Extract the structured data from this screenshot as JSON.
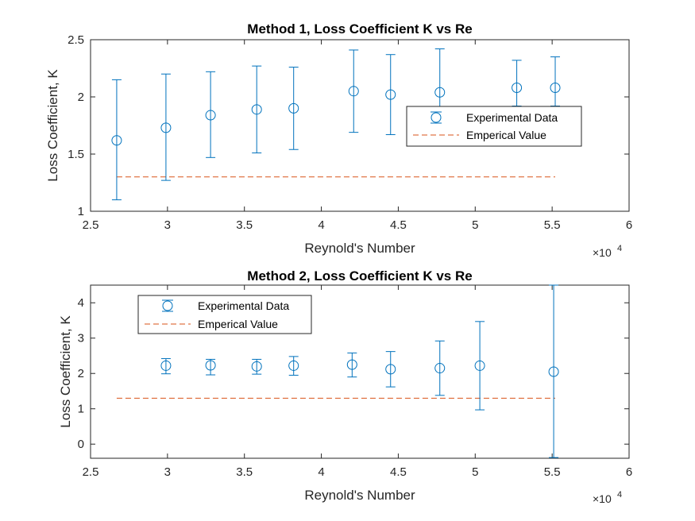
{
  "colors": {
    "experimental": "#0072BD",
    "emperical": "#D95319",
    "axis": "#262626",
    "background": "#ffffff"
  },
  "chart_data": [
    {
      "type": "scatter",
      "title": "Method 1, Loss Coefficient K vs Re",
      "xlabel": "Reynold's Number",
      "ylabel": "Loss Coefficient, K",
      "x_exponent_label": "×10",
      "x_exponent_power": "4",
      "xlim": [
        25000,
        60000
      ],
      "ylim": [
        1,
        2.5
      ],
      "xticks": [
        25000,
        30000,
        35000,
        40000,
        45000,
        50000,
        55000,
        60000
      ],
      "xtick_labels": [
        "2.5",
        "3",
        "3.5",
        "4",
        "4.5",
        "5",
        "5.5",
        "6"
      ],
      "yticks": [
        1,
        1.5,
        2,
        2.5
      ],
      "ytick_labels": [
        "1",
        "1.5",
        "2",
        "2.5"
      ],
      "legend_position": "center-right",
      "series": [
        {
          "name": "Experimental Data",
          "style": "errorbar-circle",
          "x": [
            26700,
            29900,
            32800,
            35800,
            38200,
            42100,
            44500,
            47700,
            52700,
            55200
          ],
          "y": [
            1.62,
            1.73,
            1.84,
            1.89,
            1.9,
            2.05,
            2.02,
            2.04,
            2.08,
            2.08
          ],
          "err_low": [
            1.1,
            1.27,
            1.47,
            1.51,
            1.54,
            1.69,
            1.67,
            1.85,
            1.92,
            1.92
          ],
          "err_high": [
            2.15,
            2.2,
            2.22,
            2.27,
            2.26,
            2.41,
            2.37,
            2.42,
            2.32,
            2.35
          ]
        },
        {
          "name": "Emperical Value",
          "style": "dashed-line",
          "x": [
            26700,
            55200
          ],
          "y": [
            1.3,
            1.3
          ]
        }
      ]
    },
    {
      "type": "scatter",
      "title": "Method 2, Loss Coefficient K vs Re",
      "xlabel": "Reynold's Number",
      "ylabel": "Loss Coefficient, K",
      "x_exponent_label": "×10",
      "x_exponent_power": "4",
      "xlim": [
        25000,
        60000
      ],
      "ylim": [
        -0.4,
        4.5
      ],
      "xticks": [
        25000,
        30000,
        35000,
        40000,
        45000,
        50000,
        55000,
        60000
      ],
      "xtick_labels": [
        "2.5",
        "3",
        "3.5",
        "4",
        "4.5",
        "5",
        "5.5",
        "6"
      ],
      "yticks": [
        0,
        1,
        2,
        3,
        4
      ],
      "ytick_labels": [
        "0",
        "1",
        "2",
        "3",
        "4"
      ],
      "legend_position": "top-left",
      "series": [
        {
          "name": "Experimental Data",
          "style": "errorbar-circle",
          "x": [
            29900,
            32800,
            35800,
            38200,
            42000,
            44500,
            47700,
            50300,
            55100
          ],
          "y": [
            2.22,
            2.23,
            2.2,
            2.22,
            2.25,
            2.12,
            2.15,
            2.22,
            2.05
          ],
          "err_low": [
            1.99,
            1.96,
            1.98,
            1.95,
            1.9,
            1.62,
            1.38,
            0.97,
            -0.38
          ],
          "err_high": [
            2.42,
            2.4,
            2.4,
            2.48,
            2.58,
            2.62,
            2.92,
            3.47,
            4.5
          ]
        },
        {
          "name": "Emperical Value",
          "style": "dashed-line",
          "x": [
            26700,
            55200
          ],
          "y": [
            1.3,
            1.3
          ]
        }
      ]
    }
  ]
}
